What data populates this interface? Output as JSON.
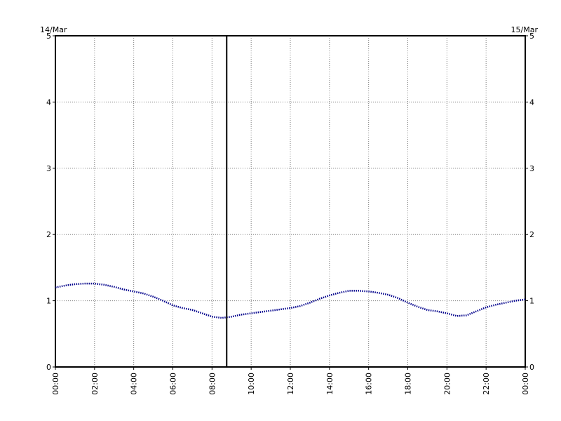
{
  "chart_data": {
    "type": "line",
    "title": "",
    "xlabel": "",
    "ylabel": "",
    "date_left": "14/Mar",
    "date_right": "15/Mar",
    "x_tick_labels": [
      "00:00",
      "02:00",
      "04:00",
      "06:00",
      "08:00",
      "10:00",
      "12:00",
      "14:00",
      "16:00",
      "18:00",
      "20:00",
      "22:00",
      "00:00"
    ],
    "y_tick_labels": [
      "0",
      "1",
      "2",
      "3",
      "4",
      "5"
    ],
    "xlim_hours": [
      0,
      24
    ],
    "ylim": [
      0,
      5
    ],
    "grid": true,
    "marker_hour": 8.75,
    "series": [
      {
        "color": "#00008b",
        "x_hours": [
          0,
          0.5,
          1,
          1.5,
          2,
          2.5,
          3,
          3.5,
          4,
          4.5,
          5,
          5.5,
          6,
          6.5,
          7,
          7.5,
          8,
          8.5,
          9,
          9.5,
          10,
          10.5,
          11,
          11.5,
          12,
          12.5,
          13,
          13.5,
          14,
          14.5,
          15,
          15.5,
          16,
          16.5,
          17,
          17.5,
          18,
          18.5,
          19,
          19.5,
          20,
          20.5,
          21,
          21.5,
          22,
          22.5,
          23,
          23.5,
          24
        ],
        "values": [
          1.2,
          1.23,
          1.25,
          1.26,
          1.26,
          1.24,
          1.21,
          1.17,
          1.14,
          1.11,
          1.06,
          1.0,
          0.93,
          0.89,
          0.86,
          0.81,
          0.76,
          0.74,
          0.76,
          0.79,
          0.81,
          0.83,
          0.85,
          0.87,
          0.89,
          0.92,
          0.97,
          1.03,
          1.08,
          1.12,
          1.15,
          1.15,
          1.14,
          1.12,
          1.09,
          1.04,
          0.97,
          0.91,
          0.86,
          0.84,
          0.81,
          0.77,
          0.78,
          0.84,
          0.9,
          0.94,
          0.97,
          1.0,
          1.02
        ]
      }
    ]
  }
}
